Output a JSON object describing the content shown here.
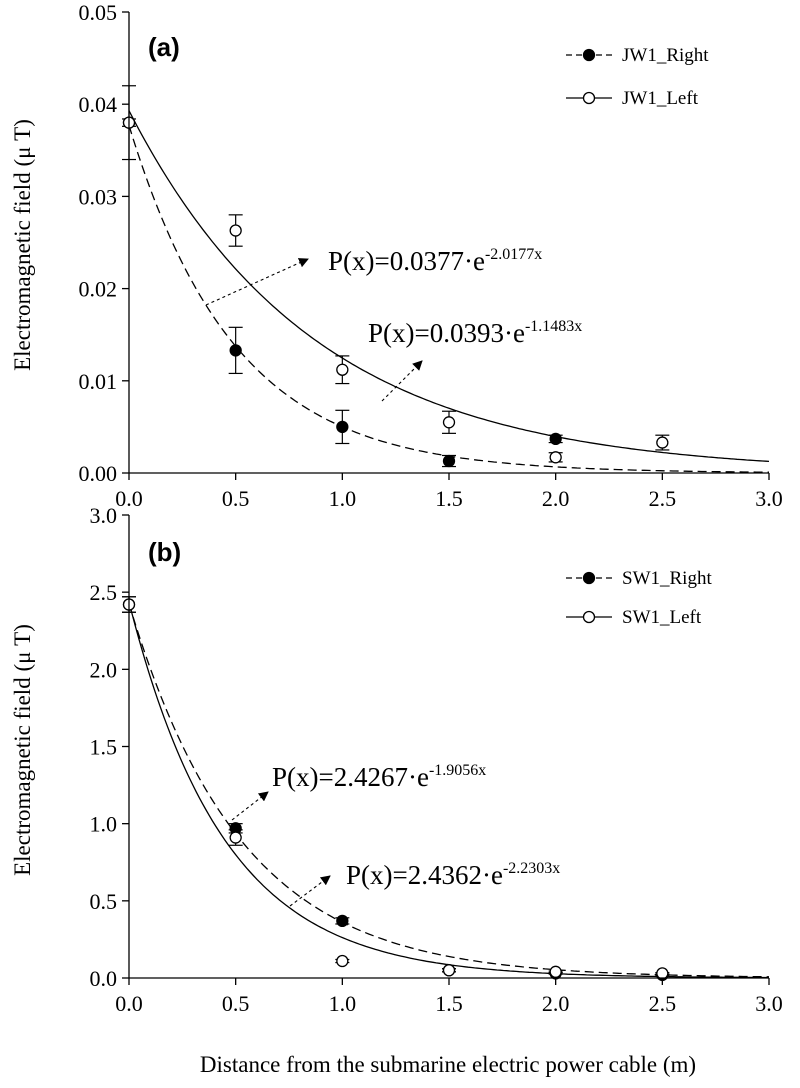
{
  "chart_data": [
    {
      "type": "scatter",
      "panel_label": "(a)",
      "ylabel": "Electromagnetic field (μ T)",
      "xlabel": "",
      "xlim": [
        0,
        3.0
      ],
      "ylim": [
        0,
        0.05
      ],
      "x_ticks": [
        "0.0",
        "0.5",
        "1.0",
        "1.5",
        "2.0",
        "2.5",
        "3.0"
      ],
      "y_ticks": [
        "0.00",
        "0.01",
        "0.02",
        "0.03",
        "0.04",
        "0.05"
      ],
      "legend_position": "top-right",
      "series": [
        {
          "name": "JW1_Right",
          "marker": "filled-circle",
          "line": "dashed",
          "points": [
            {
              "x": 0.0,
              "y": 0.038,
              "err": 0.004
            },
            {
              "x": 0.5,
              "y": 0.0133,
              "err": 0.0025
            },
            {
              "x": 1.0,
              "y": 0.005,
              "err": 0.0018
            },
            {
              "x": 1.5,
              "y": 0.0013,
              "err": 0.0006
            },
            {
              "x": 2.0,
              "y": 0.0037,
              "err": 0.0004
            }
          ],
          "fit": {
            "a": 0.0377,
            "b": 2.0177
          }
        },
        {
          "name": "JW1_Left",
          "marker": "open-circle",
          "line": "solid",
          "points": [
            {
              "x": 0.0,
              "y": 0.038,
              "err": 0.0004
            },
            {
              "x": 0.5,
              "y": 0.0263,
              "err": 0.0017
            },
            {
              "x": 1.0,
              "y": 0.0112,
              "err": 0.0015
            },
            {
              "x": 1.5,
              "y": 0.0055,
              "err": 0.0012
            },
            {
              "x": 2.0,
              "y": 0.0017,
              "err": 0.0005
            },
            {
              "x": 2.5,
              "y": 0.0033,
              "err": 0.0008
            }
          ],
          "fit": {
            "a": 0.0393,
            "b": 1.1483
          }
        }
      ],
      "annotations": [
        {
          "text": "P(x)=0.0377·e",
          "sup": "-2.0177x",
          "series": "JW1_Right"
        },
        {
          "text": "P(x)=0.0393·e",
          "sup": "-1.1483x",
          "series": "JW1_Left"
        }
      ]
    },
    {
      "type": "scatter",
      "panel_label": "(b)",
      "ylabel": "Electromagnetic field (μ T)",
      "xlabel": "Distance from the submarine electric power cable (m)",
      "xlim": [
        0,
        3.0
      ],
      "ylim": [
        0,
        3.0
      ],
      "x_ticks": [
        "0.0",
        "0.5",
        "1.0",
        "1.5",
        "2.0",
        "2.5",
        "3.0"
      ],
      "y_ticks": [
        "0.0",
        "0.5",
        "1.0",
        "1.5",
        "2.0",
        "2.5",
        "3.0"
      ],
      "legend_position": "top-right",
      "series": [
        {
          "name": "SW1_Right",
          "marker": "filled-circle",
          "line": "dashed",
          "points": [
            {
              "x": 0.0,
              "y": 2.42,
              "err": 0.05
            },
            {
              "x": 0.5,
              "y": 0.97,
              "err": 0.03
            },
            {
              "x": 1.0,
              "y": 0.37,
              "err": 0.02
            },
            {
              "x": 1.5,
              "y": 0.05,
              "err": 0.01
            },
            {
              "x": 2.0,
              "y": 0.03,
              "err": 0.005
            },
            {
              "x": 2.5,
              "y": 0.02,
              "err": 0.005
            }
          ],
          "fit": {
            "a": 2.4267,
            "b": 1.9056
          }
        },
        {
          "name": "SW1_Left",
          "marker": "open-circle",
          "line": "solid",
          "points": [
            {
              "x": 0.0,
              "y": 2.42,
              "err": 0.05
            },
            {
              "x": 0.5,
              "y": 0.91,
              "err": 0.05
            },
            {
              "x": 1.0,
              "y": 0.11,
              "err": 0.01
            },
            {
              "x": 1.5,
              "y": 0.05,
              "err": 0.01
            },
            {
              "x": 2.0,
              "y": 0.04,
              "err": 0.005
            },
            {
              "x": 2.5,
              "y": 0.03,
              "err": 0.005
            }
          ],
          "fit": {
            "a": 2.4362,
            "b": 2.2303
          }
        }
      ],
      "annotations": [
        {
          "text": "P(x)=2.4267·e",
          "sup": "-1.9056x",
          "series": "SW1_Right"
        },
        {
          "text": "P(x)=2.4362·e",
          "sup": "-2.2303x",
          "series": "SW1_Left"
        }
      ]
    }
  ]
}
